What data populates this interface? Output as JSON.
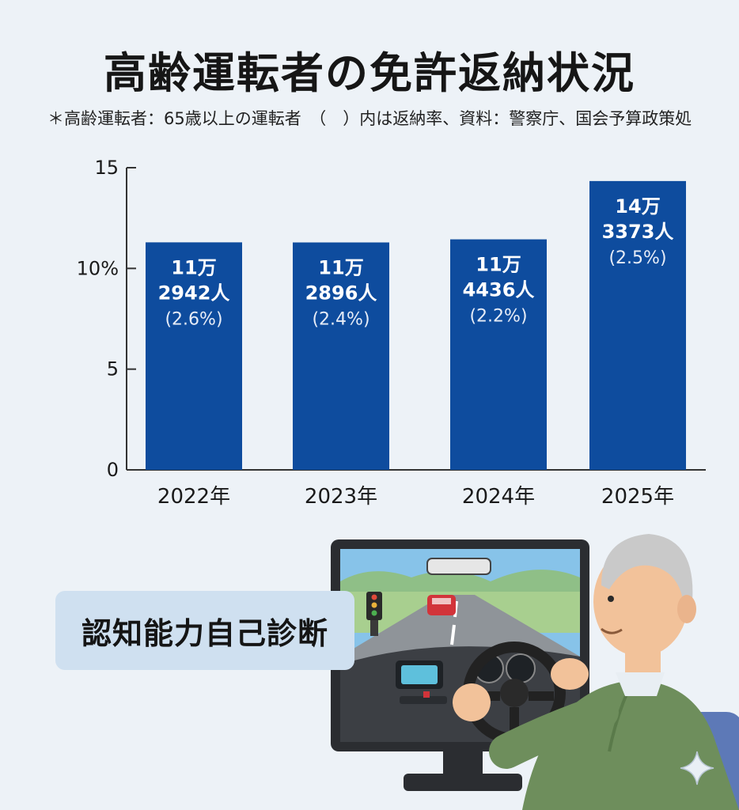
{
  "header": {
    "title": "高齢運転者の免許返納状況",
    "subtitle": "＊高齢運転者：65歳以上の運転者　（　）内は返納率、資料：警察庁、国会予算政策処"
  },
  "chart_data": {
    "type": "bar",
    "categories": [
      "2022年",
      "2023年",
      "2024年",
      "2025年"
    ],
    "values": [
      11.2942,
      11.2896,
      11.4436,
      14.3373
    ],
    "bar_labels": [
      {
        "line1": "11万",
        "line2": "2942人",
        "rate": "(2.6%)"
      },
      {
        "line1": "11万",
        "line2": "2896人",
        "rate": "(2.4%)"
      },
      {
        "line1": "11万",
        "line2": "4436人",
        "rate": "(2.2%)"
      },
      {
        "line1": "14万",
        "line2": "3373人",
        "rate": "(2.5%)"
      }
    ],
    "rates": [
      2.6,
      2.4,
      2.2,
      2.5
    ],
    "y_ticks": [
      {
        "value": 0,
        "label": "0"
      },
      {
        "value": 5,
        "label": "5"
      },
      {
        "value": 10,
        "label": "10%"
      },
      {
        "value": 15,
        "label": "15"
      }
    ],
    "ylim": [
      0,
      15
    ],
    "grid": false,
    "colors": {
      "bar": "#0e4c9e"
    }
  },
  "illustration": {
    "badge_text": "認知能力自己診断",
    "scene_icon": "elderly-driver-simulator-icon",
    "sparkle_icon": "sparkle-icon"
  }
}
